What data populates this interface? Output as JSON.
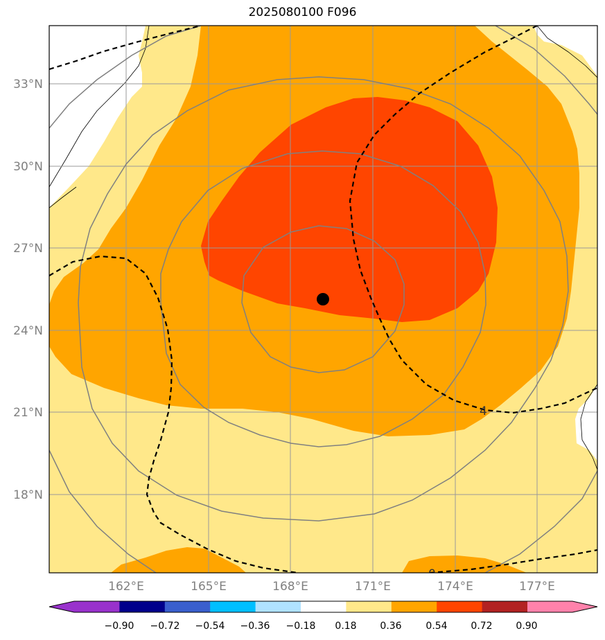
{
  "title": "2025080100 F096",
  "lon_ticks": [
    "162°E",
    "165°E",
    "168°E",
    "171°E",
    "174°E",
    "177°E"
  ],
  "lat_ticks": [
    "33°N",
    "30°N",
    "27°N",
    "24°N",
    "21°N",
    "18°N"
  ],
  "contour_label": "4",
  "contour_label_bottom": "0",
  "colorbar": {
    "ticks": [
      "−0.90",
      "−0.72",
      "−0.54",
      "−0.36",
      "−0.18",
      "0.18",
      "0.36",
      "0.54",
      "0.72",
      "0.90"
    ],
    "colors": [
      "#9932cc",
      "#00008b",
      "#3a5fcd",
      "#00bfff",
      "#b0e2ff",
      "#ffffff",
      "#ffe88a",
      "#ffa500",
      "#ff4500",
      "#b22222",
      "#ff82ab"
    ]
  },
  "map_colors": {
    "level_036": "#ffe88a",
    "level_054": "#ffa500",
    "level_072": "#ff4500",
    "land": "#ffffff",
    "gridline": "#999999",
    "contour": "#808080"
  },
  "center_marker": {
    "lon": 169.2,
    "lat": 25.1,
    "label": ""
  }
}
